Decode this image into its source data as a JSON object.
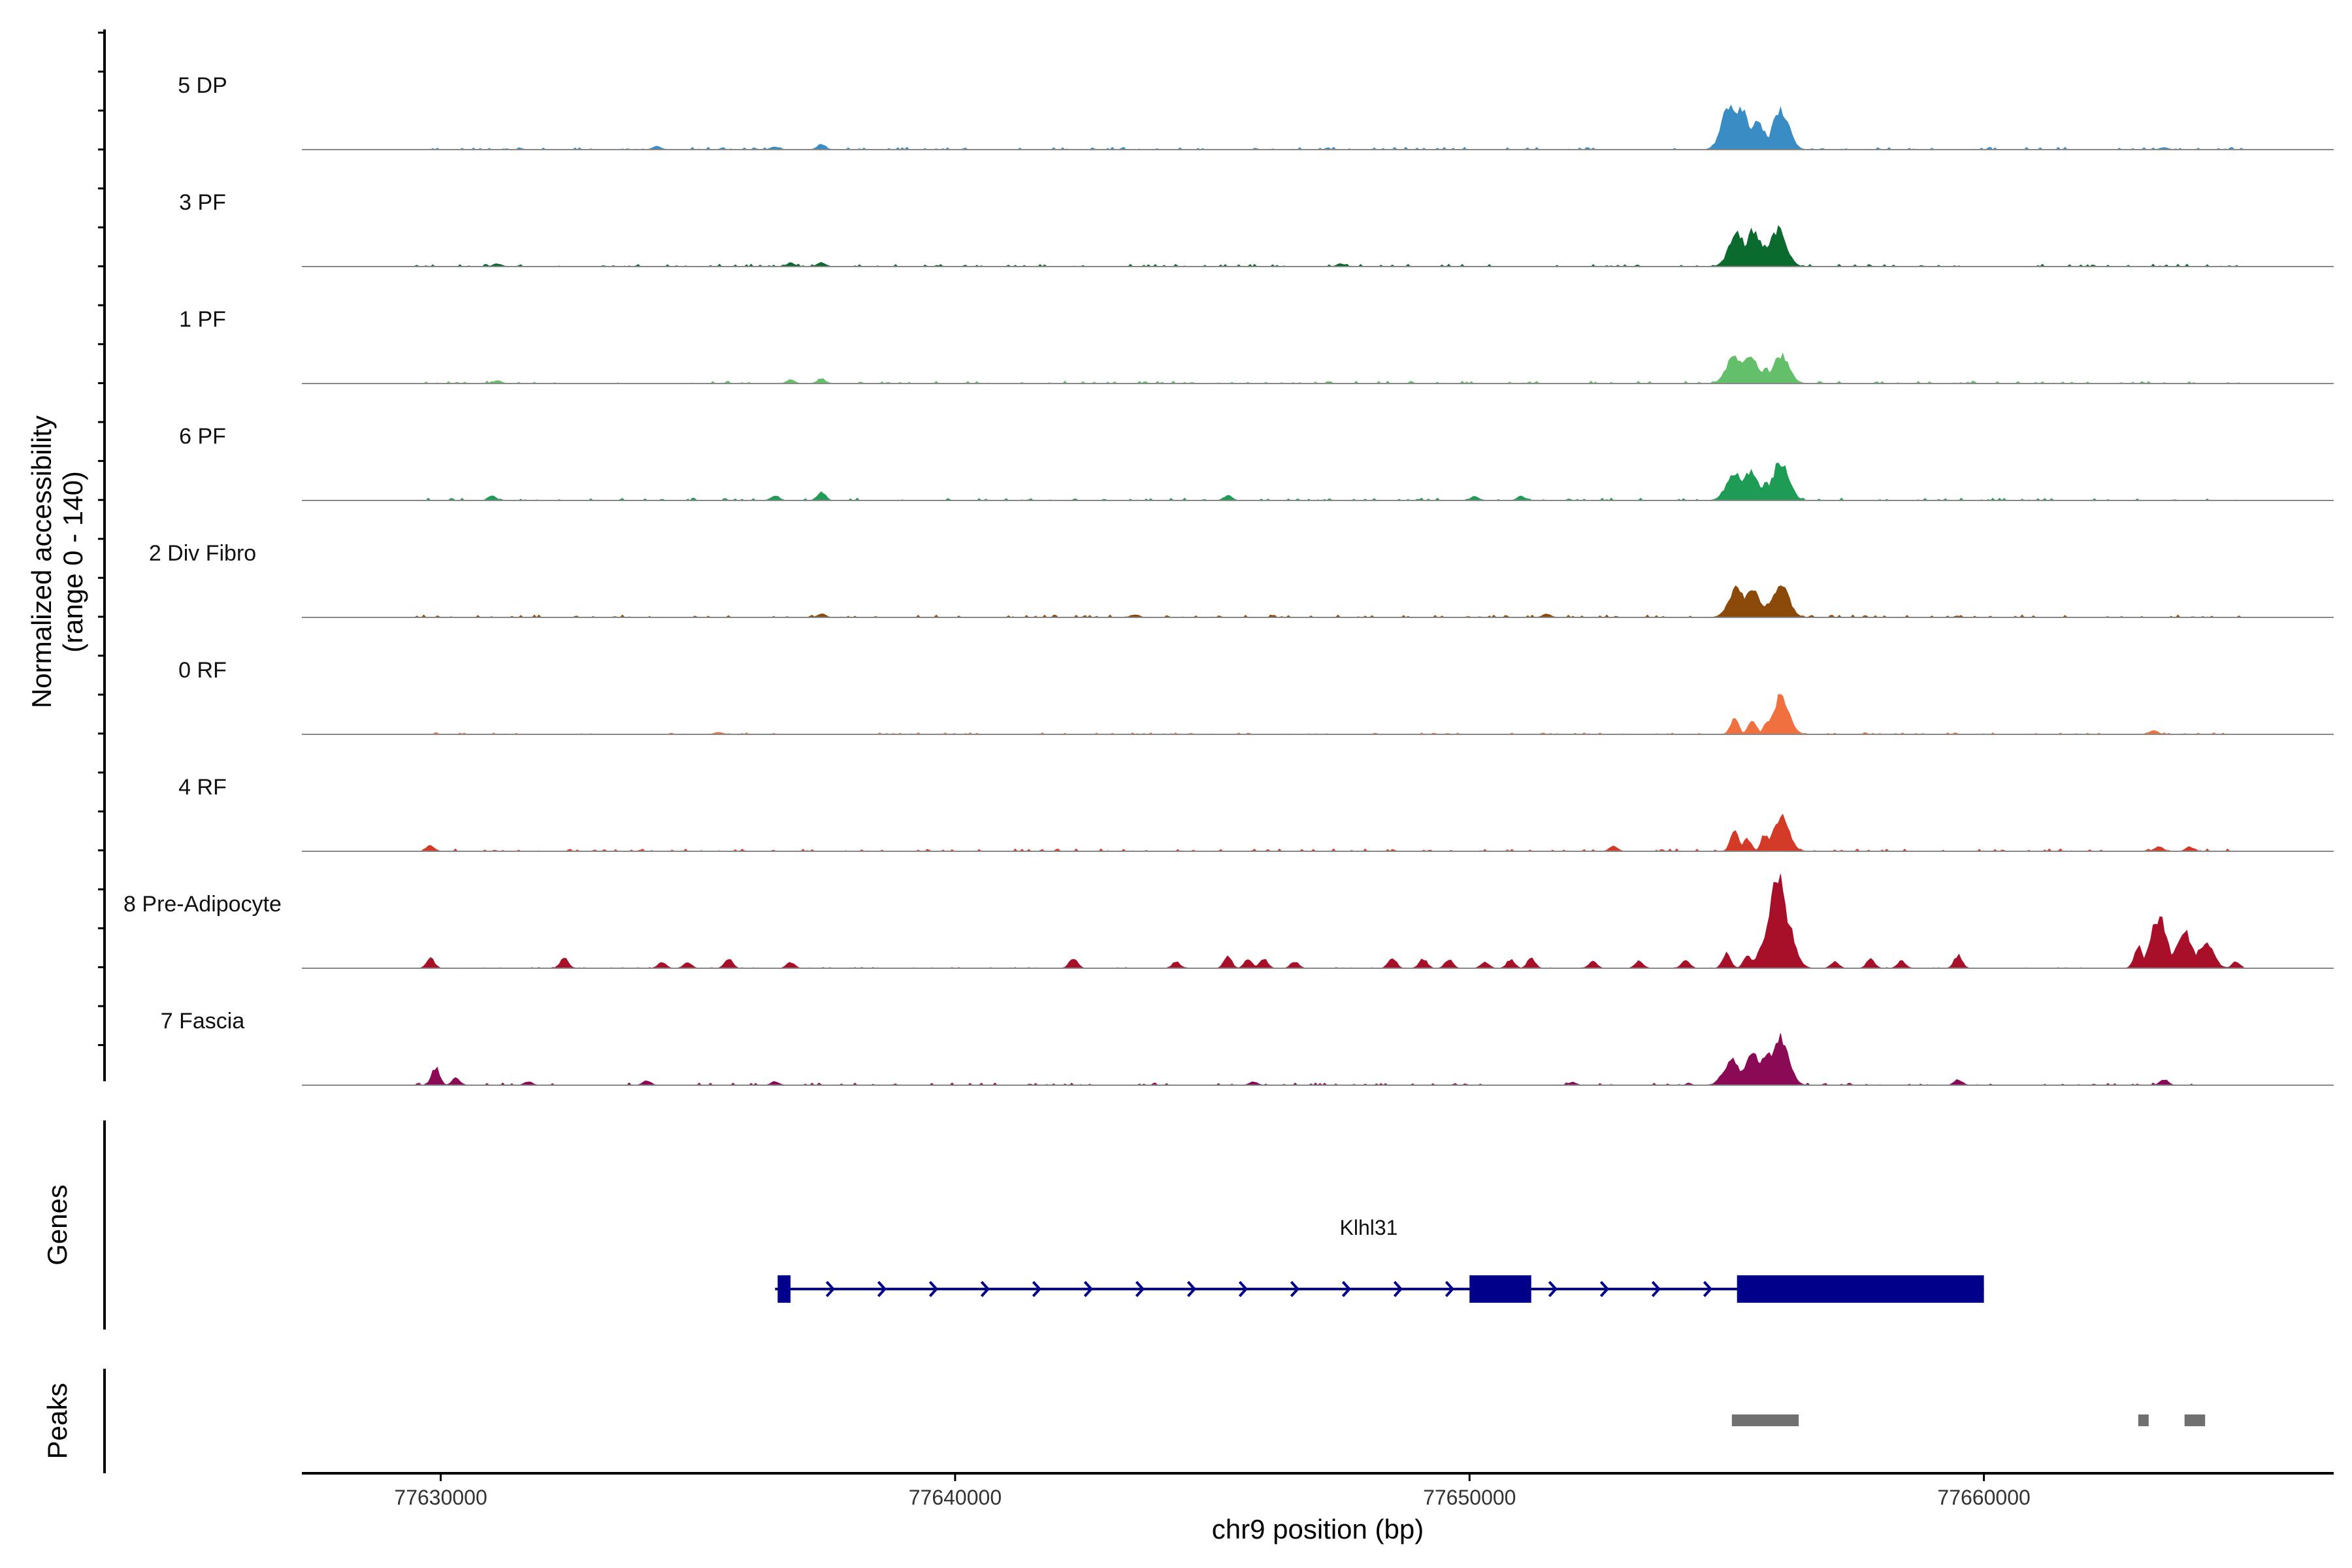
{
  "chart_data": {
    "type": "area",
    "title": "",
    "ylabel_line1": "Normalized accessibility",
    "ylabel_line2": "(range 0 - 140)",
    "xlabel": "chr9 position (bp)",
    "genes_label": "Genes",
    "peaks_label": "Peaks",
    "xlim": [
      77627300,
      77666800
    ],
    "ylim": [
      0,
      140
    ],
    "x_ticks": [
      77630000,
      77640000,
      77650000,
      77660000
    ],
    "x_tick_labels": [
      "77630000",
      "77640000",
      "77650000",
      "77660000"
    ],
    "series": [
      {
        "name": "5 DP",
        "color": "#3a8cc5",
        "peaks": [
          [
            77655070,
            65
          ],
          [
            77655250,
            60
          ],
          [
            77655580,
            40
          ],
          [
            77656050,
            55
          ],
          [
            77637400,
            8
          ],
          [
            77634200,
            5
          ],
          [
            77636500,
            4
          ],
          [
            77663500,
            3
          ],
          [
            77665200,
            3
          ]
        ],
        "baseline": 3
      },
      {
        "name": "3 PF",
        "color": "#0b6b2f",
        "peaks": [
          [
            77655200,
            45
          ],
          [
            77655520,
            50
          ],
          [
            77655750,
            28
          ],
          [
            77656000,
            52
          ],
          [
            77637400,
            6
          ],
          [
            77636800,
            5
          ],
          [
            77631100,
            4
          ],
          [
            77647500,
            4
          ]
        ],
        "baseline": 3
      },
      {
        "name": "1 PF",
        "color": "#63bf69",
        "peaks": [
          [
            77655150,
            38
          ],
          [
            77655450,
            42
          ],
          [
            77655750,
            22
          ],
          [
            77656050,
            40
          ],
          [
            77637400,
            7
          ],
          [
            77636800,
            5
          ],
          [
            77631100,
            4
          ]
        ],
        "baseline": 3
      },
      {
        "name": "6 PF",
        "color": "#1e9b55",
        "peaks": [
          [
            77655150,
            38
          ],
          [
            77655450,
            40
          ],
          [
            77655750,
            25
          ],
          [
            77656050,
            55
          ],
          [
            77637400,
            12
          ],
          [
            77636500,
            7
          ],
          [
            77631000,
            6
          ],
          [
            77645300,
            7
          ],
          [
            77651000,
            6
          ],
          [
            77650100,
            6
          ]
        ],
        "baseline": 3
      },
      {
        "name": "2 Div Fibro",
        "color": "#8b4a0a",
        "peaks": [
          [
            77655200,
            40
          ],
          [
            77655500,
            38
          ],
          [
            77655800,
            22
          ],
          [
            77656050,
            48
          ],
          [
            77637400,
            5
          ],
          [
            77643500,
            4
          ],
          [
            77651500,
            5
          ]
        ],
        "baseline": 3
      },
      {
        "name": "0 RF",
        "color": "#f07040",
        "peaks": [
          [
            77655150,
            22
          ],
          [
            77655500,
            20
          ],
          [
            77655800,
            18
          ],
          [
            77656050,
            52
          ],
          [
            77663300,
            6
          ],
          [
            77635400,
            3
          ]
        ],
        "baseline": 2
      },
      {
        "name": "4 RF",
        "color": "#d43a28",
        "peaks": [
          [
            77655150,
            30
          ],
          [
            77655400,
            18
          ],
          [
            77655750,
            25
          ],
          [
            77656050,
            48
          ],
          [
            77629800,
            8
          ],
          [
            77652800,
            7
          ],
          [
            77663400,
            7
          ],
          [
            77664000,
            6
          ]
        ],
        "baseline": 3
      },
      {
        "name": "8 Pre-Adipocyte",
        "color": "#a8102a",
        "peaks": [
          [
            77629800,
            14
          ],
          [
            77632400,
            14
          ],
          [
            77635600,
            14
          ],
          [
            77634300,
            8
          ],
          [
            77634800,
            8
          ],
          [
            77636800,
            8
          ],
          [
            77642300,
            14
          ],
          [
            77644300,
            9
          ],
          [
            77645300,
            16
          ],
          [
            77645700,
            12
          ],
          [
            77646000,
            14
          ],
          [
            77646600,
            9
          ],
          [
            77648500,
            15
          ],
          [
            77649100,
            13
          ],
          [
            77649600,
            12
          ],
          [
            77650300,
            9
          ],
          [
            77650800,
            12
          ],
          [
            77651200,
            14
          ],
          [
            77652400,
            10
          ],
          [
            77653300,
            10
          ],
          [
            77654200,
            12
          ],
          [
            77655000,
            22
          ],
          [
            77655400,
            18
          ],
          [
            77655800,
            50
          ],
          [
            77656000,
            140
          ],
          [
            77656150,
            70
          ],
          [
            77657100,
            9
          ],
          [
            77657800,
            13
          ],
          [
            77658400,
            10
          ],
          [
            77659500,
            18
          ],
          [
            77663000,
            30
          ],
          [
            77663400,
            70
          ],
          [
            77663900,
            50
          ],
          [
            77664300,
            35
          ],
          [
            77664900,
            9
          ]
        ],
        "baseline": 1
      },
      {
        "name": "7 Fascia",
        "color": "#8a0a55",
        "peaks": [
          [
            77629900,
            25
          ],
          [
            77630300,
            10
          ],
          [
            77634000,
            6
          ],
          [
            77636500,
            5
          ],
          [
            77645800,
            5
          ],
          [
            77652000,
            4
          ],
          [
            77655100,
            35
          ],
          [
            77655500,
            45
          ],
          [
            77655800,
            42
          ],
          [
            77656050,
            65
          ],
          [
            77659500,
            8
          ],
          [
            77663500,
            8
          ],
          [
            77631700,
            5
          ]
        ],
        "baseline": 3
      }
    ],
    "gene": {
      "name": "Klhl31",
      "color": "#00008b",
      "start": 77636500,
      "end": 77660000,
      "exons": [
        [
          77636550,
          77636800
        ],
        [
          77650000,
          77651200
        ],
        [
          77655200,
          77660000
        ]
      ]
    },
    "peak_regions": [
      [
        77655100,
        77656400
      ],
      [
        77663000,
        77663200
      ],
      [
        77663900,
        77664300
      ]
    ]
  }
}
